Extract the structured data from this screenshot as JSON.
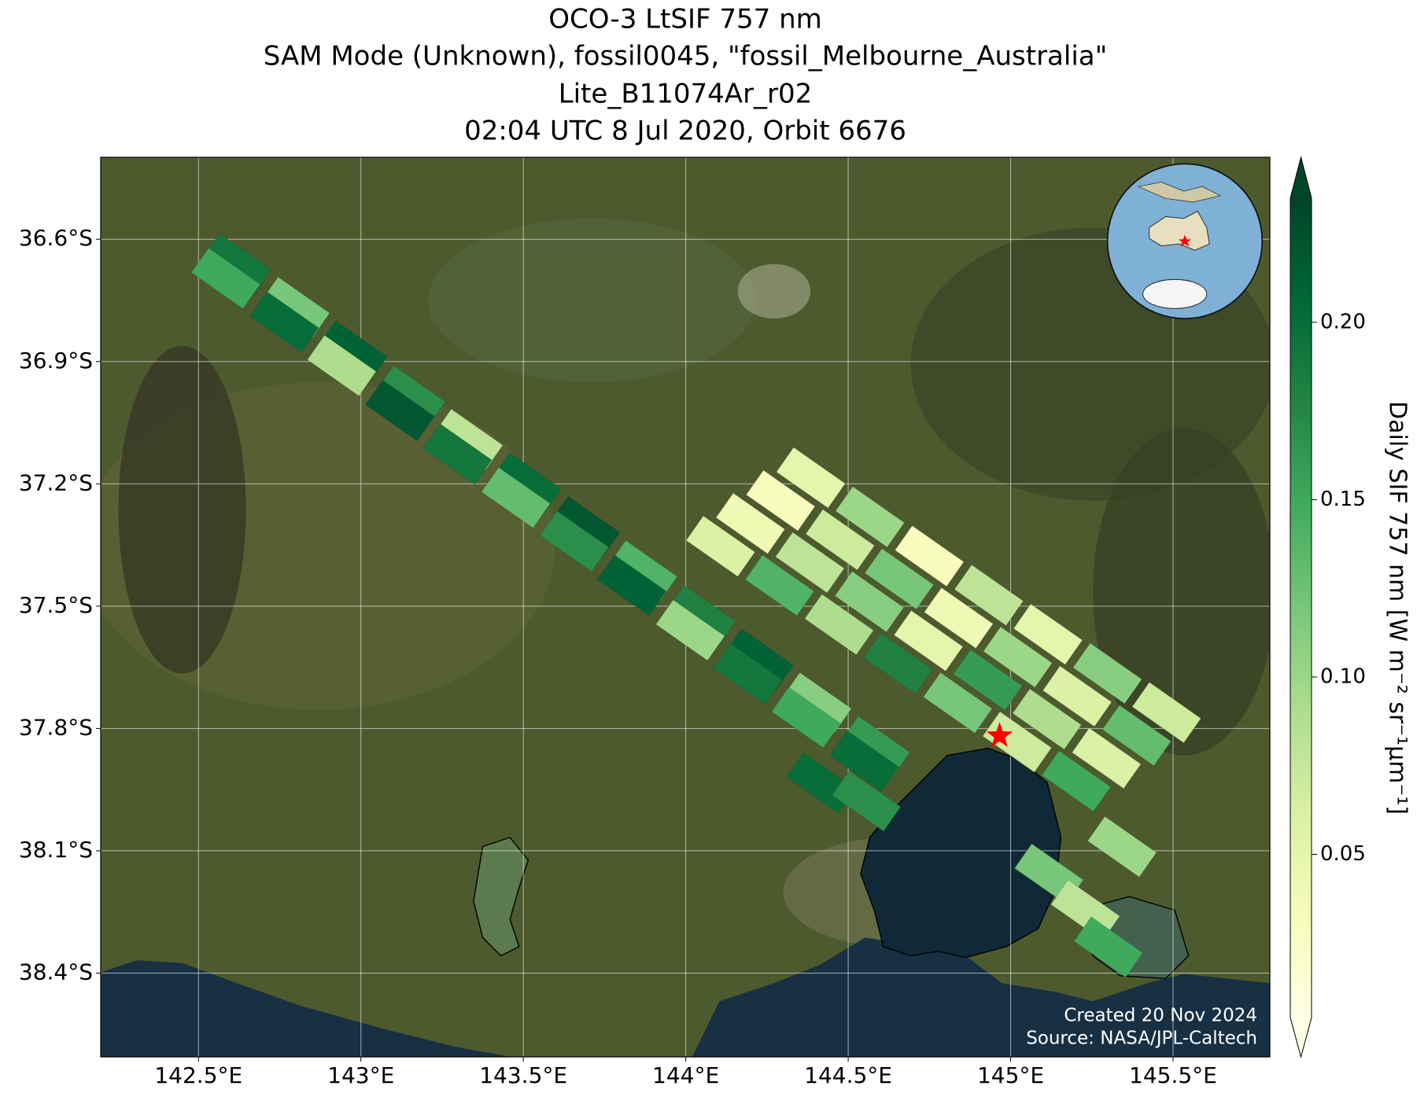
{
  "chart_data": {
    "type": "map",
    "title": [
      "OCO-3 LtSIF 757 nm",
      "SAM Mode (Unknown), fossil0045, \"fossil_Melbourne_Australia\"",
      "Lite_B11074Ar_r02",
      "02:04 UTC 8 Jul 2020, Orbit 6676"
    ],
    "xlim": [
      142.199,
      145.798
    ],
    "ylim": [
      -38.6055,
      -36.399
    ],
    "xticks": [
      {
        "value": 142.5,
        "label": "142.5°E"
      },
      {
        "value": 143,
        "label": "143°E"
      },
      {
        "value": 143.5,
        "label": "143.5°E"
      },
      {
        "value": 144,
        "label": "144°E"
      },
      {
        "value": 144.5,
        "label": "144.5°E"
      },
      {
        "value": 145,
        "label": "145°E"
      },
      {
        "value": 145.5,
        "label": "145.5°E"
      }
    ],
    "yticks": [
      {
        "value": -36.6,
        "label": "36.6°S"
      },
      {
        "value": -36.9,
        "label": "36.9°S"
      },
      {
        "value": -37.2,
        "label": "37.2°S"
      },
      {
        "value": -37.5,
        "label": "37.5°S"
      },
      {
        "value": -37.8,
        "label": "37.8°S"
      },
      {
        "value": -38.1,
        "label": "38.1°S"
      },
      {
        "value": -38.4,
        "label": "38.4°S"
      }
    ],
    "grid": true,
    "colorbar": {
      "label": "Daily SIF 757 nm [W m⁻² sr⁻¹μm⁻¹]",
      "colormap": "YlGn",
      "lim": [
        0.004,
        0.235
      ],
      "ticks": [
        0.05,
        {
          "value": 0.1,
          "label": "0.10"
        },
        0.15,
        {
          "value": 0.2,
          "label": "0.20"
        }
      ],
      "extend": "both"
    },
    "soundings": {
      "lon": [
        142.618,
        142.798,
        142.975,
        143.154,
        143.331,
        143.511,
        143.691,
        143.868,
        144.048,
        144.225,
        144.404,
        144.584,
        142.584,
        142.764,
        142.941,
        143.12,
        143.297,
        143.477,
        143.657,
        143.834,
        144.014,
        144.191,
        144.37,
        144.55,
        144.107,
        144.289,
        144.472,
        144.654,
        144.837,
        145.02,
        145.202,
        144.199,
        144.382,
        144.565,
        144.747,
        144.93,
        145.112,
        145.295,
        144.292,
        144.475,
        144.657,
        144.84,
        145.022,
        145.205,
        145.388,
        144.385,
        144.567,
        144.75,
        144.933,
        145.115,
        145.298,
        145.48,
        145.118,
        145.23,
        145.301,
        145.343,
        144.416,
        144.556
      ],
      "lat": [
        -36.66,
        -36.767,
        -36.874,
        -36.984,
        -37.091,
        -37.198,
        -37.305,
        -37.413,
        -37.523,
        -37.63,
        -37.737,
        -37.844,
        -36.696,
        -36.803,
        -36.91,
        -37.02,
        -37.127,
        -37.234,
        -37.341,
        -37.449,
        -37.559,
        -37.666,
        -37.773,
        -37.88,
        -37.353,
        -37.449,
        -37.545,
        -37.641,
        -37.737,
        -37.833,
        -37.929,
        -37.297,
        -37.393,
        -37.489,
        -37.585,
        -37.681,
        -37.777,
        -37.873,
        -37.241,
        -37.337,
        -37.433,
        -37.529,
        -37.625,
        -37.721,
        -37.817,
        -37.185,
        -37.281,
        -37.377,
        -37.473,
        -37.569,
        -37.665,
        -37.761,
        -38.157,
        -38.246,
        -38.336,
        -38.09,
        -37.933,
        -37.978
      ],
      "sif": [
        0.19,
        0.12,
        0.21,
        0.17,
        0.08,
        0.2,
        0.22,
        0.14,
        0.18,
        0.21,
        0.11,
        0.16,
        0.15,
        0.2,
        0.09,
        0.22,
        0.19,
        0.13,
        0.17,
        0.21,
        0.1,
        0.19,
        0.15,
        0.2,
        0.06,
        0.14,
        0.09,
        0.18,
        0.12,
        0.07,
        0.15,
        0.04,
        0.08,
        0.11,
        0.05,
        0.16,
        0.09,
        0.06,
        0.03,
        0.07,
        0.12,
        0.04,
        0.1,
        0.06,
        0.13,
        0.05,
        0.1,
        0.03,
        0.08,
        0.05,
        0.11,
        0.07,
        0.12,
        0.08,
        0.15,
        0.1,
        0.2,
        0.17
      ]
    },
    "target": {
      "lon": 144.966,
      "lat": -37.818,
      "color": "#ff0000"
    },
    "credits": [
      "Created 20 Nov 2024",
      "Source: NASA/JPL-Caltech"
    ]
  }
}
